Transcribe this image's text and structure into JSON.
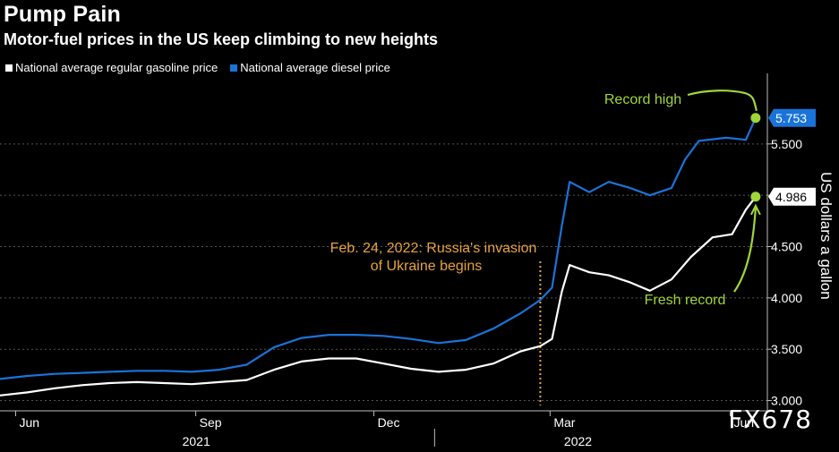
{
  "header": {
    "title": "Pump Pain",
    "subtitle": "Motor-fuel prices in the US keep climbing to new heights"
  },
  "legend": {
    "gasoline_label": "National average regular gasoline price",
    "diesel_label": "National average diesel price"
  },
  "colors": {
    "background": "#000000",
    "gasoline": "#ffffff",
    "diesel": "#1a73d9",
    "record": "#9fd63a",
    "annotation": "#e8a33d",
    "grid": "#555555"
  },
  "watermark": "FX678",
  "chart_data": {
    "type": "line",
    "xlabel": "",
    "ylabel": "US dollars a gallon",
    "ylim": [
      2.9,
      6.1
    ],
    "xlim": [
      "2021-05-24",
      "2022-06-20"
    ],
    "yticks": [
      "3.000",
      "3.500",
      "4.000",
      "4.500",
      "5.000",
      "5.500"
    ],
    "month_ticks": [
      {
        "label": "Jun",
        "date": "2021-06-01"
      },
      {
        "label": "Sep",
        "date": "2021-09-01"
      },
      {
        "label": "Dec",
        "date": "2021-12-01"
      },
      {
        "label": "Mar",
        "date": "2022-03-01"
      },
      {
        "label": "Jun",
        "date": "2022-06-01"
      }
    ],
    "year_labels": [
      {
        "label": "2021",
        "date": "2021-09-01"
      },
      {
        "label": "2022",
        "date": "2022-03-15"
      }
    ],
    "grid": true,
    "legend_position": "top-left",
    "series": [
      {
        "name": "National average regular gasoline price",
        "points": [
          [
            "2021-05-24",
            3.05
          ],
          [
            "2021-06-07",
            3.08
          ],
          [
            "2021-06-21",
            3.12
          ],
          [
            "2021-07-05",
            3.15
          ],
          [
            "2021-07-19",
            3.17
          ],
          [
            "2021-08-02",
            3.18
          ],
          [
            "2021-08-16",
            3.17
          ],
          [
            "2021-08-30",
            3.16
          ],
          [
            "2021-09-13",
            3.18
          ],
          [
            "2021-09-27",
            3.2
          ],
          [
            "2021-10-11",
            3.3
          ],
          [
            "2021-10-25",
            3.38
          ],
          [
            "2021-11-08",
            3.41
          ],
          [
            "2021-11-22",
            3.41
          ],
          [
            "2021-12-06",
            3.36
          ],
          [
            "2021-12-20",
            3.31
          ],
          [
            "2022-01-03",
            3.28
          ],
          [
            "2022-01-17",
            3.3
          ],
          [
            "2022-01-31",
            3.36
          ],
          [
            "2022-02-14",
            3.48
          ],
          [
            "2022-02-24",
            3.53
          ],
          [
            "2022-03-02",
            3.6
          ],
          [
            "2022-03-07",
            4.06
          ],
          [
            "2022-03-11",
            4.32
          ],
          [
            "2022-03-21",
            4.25
          ],
          [
            "2022-03-31",
            4.22
          ],
          [
            "2022-04-11",
            4.15
          ],
          [
            "2022-04-21",
            4.07
          ],
          [
            "2022-05-02",
            4.18
          ],
          [
            "2022-05-12",
            4.4
          ],
          [
            "2022-05-23",
            4.59
          ],
          [
            "2022-06-02",
            4.62
          ],
          [
            "2022-06-09",
            4.86
          ],
          [
            "2022-06-14",
            4.986
          ]
        ]
      },
      {
        "name": "National average diesel price",
        "points": [
          [
            "2021-05-24",
            3.21
          ],
          [
            "2021-06-07",
            3.24
          ],
          [
            "2021-06-21",
            3.26
          ],
          [
            "2021-07-05",
            3.27
          ],
          [
            "2021-07-19",
            3.28
          ],
          [
            "2021-08-02",
            3.29
          ],
          [
            "2021-08-16",
            3.29
          ],
          [
            "2021-08-30",
            3.28
          ],
          [
            "2021-09-13",
            3.3
          ],
          [
            "2021-09-27",
            3.35
          ],
          [
            "2021-10-11",
            3.52
          ],
          [
            "2021-10-25",
            3.61
          ],
          [
            "2021-11-08",
            3.64
          ],
          [
            "2021-11-22",
            3.64
          ],
          [
            "2021-12-06",
            3.63
          ],
          [
            "2021-12-20",
            3.6
          ],
          [
            "2022-01-03",
            3.56
          ],
          [
            "2022-01-17",
            3.59
          ],
          [
            "2022-01-31",
            3.7
          ],
          [
            "2022-02-14",
            3.85
          ],
          [
            "2022-02-24",
            3.98
          ],
          [
            "2022-03-02",
            4.1
          ],
          [
            "2022-03-07",
            4.7
          ],
          [
            "2022-03-11",
            5.13
          ],
          [
            "2022-03-21",
            5.03
          ],
          [
            "2022-03-31",
            5.13
          ],
          [
            "2022-04-11",
            5.07
          ],
          [
            "2022-04-21",
            5.0
          ],
          [
            "2022-05-02",
            5.07
          ],
          [
            "2022-05-09",
            5.35
          ],
          [
            "2022-05-16",
            5.53
          ],
          [
            "2022-05-30",
            5.56
          ],
          [
            "2022-06-09",
            5.54
          ],
          [
            "2022-06-14",
            5.753
          ]
        ]
      }
    ],
    "last_values": [
      {
        "series": "National average diesel price",
        "label": "5.753"
      },
      {
        "series": "National average regular gasoline price",
        "label": "4.986"
      }
    ],
    "annotations": [
      {
        "text": "Feb. 24, 2022: Russia's invasion",
        "date": "2022-02-24"
      },
      {
        "text": "of Ukraine begins",
        "date": "2022-02-24"
      },
      {
        "text": "Record high",
        "date": "2022-06-14"
      },
      {
        "text": "Fresh record",
        "date": "2022-06-14"
      }
    ]
  }
}
